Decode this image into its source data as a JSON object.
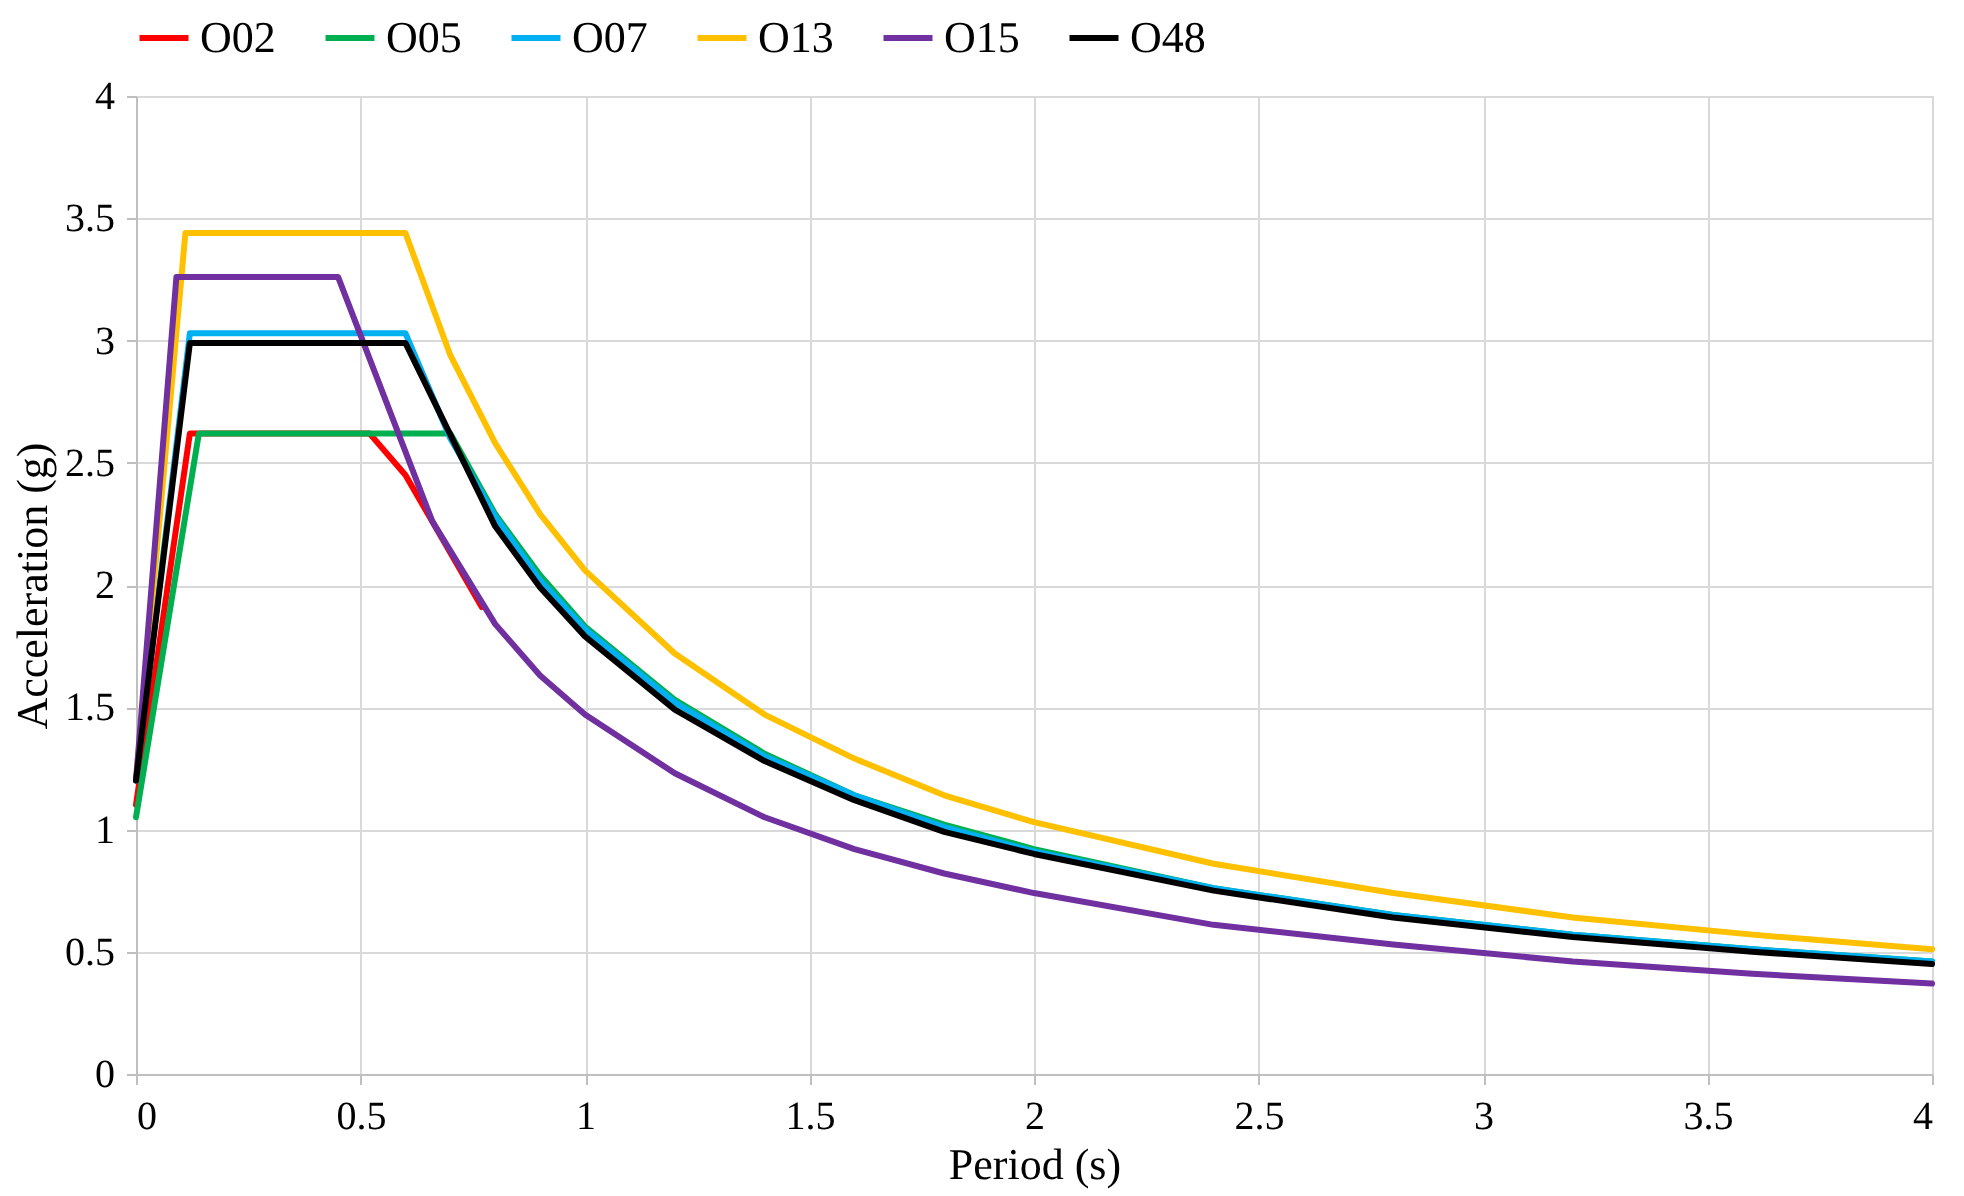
{
  "chart_data": {
    "type": "line",
    "xlabel": "Period (s)",
    "ylabel": "Acceleration (g)",
    "xlim": [
      0,
      4
    ],
    "xticks": [
      0,
      0.5,
      1,
      1.5,
      2,
      2.5,
      3,
      3.5,
      4
    ],
    "ylim": [
      0,
      4
    ],
    "yticks": [
      0,
      0.5,
      1,
      1.5,
      2,
      2.5,
      3,
      3.5,
      4
    ],
    "grid": true,
    "legend": "top",
    "marker": "none",
    "line_style": "solid",
    "series": [
      {
        "name": "O02",
        "color": "#ff0000",
        "x": [
          0,
          0.12,
          0.52,
          0.6,
          0.77
        ],
        "values": [
          1.1,
          2.62,
          2.62,
          2.45,
          1.91
        ]
      },
      {
        "name": "O05",
        "color": "#00b050",
        "x": [
          0,
          0.14,
          0.7,
          0.8,
          0.9,
          1.0,
          1.2,
          1.4,
          1.6,
          1.8,
          2.0,
          2.4,
          2.8,
          3.2,
          3.6,
          4.0
        ],
        "values": [
          1.05,
          2.62,
          2.62,
          2.29,
          2.04,
          1.83,
          1.53,
          1.31,
          1.14,
          1.02,
          0.92,
          0.76,
          0.65,
          0.57,
          0.51,
          0.46
        ]
      },
      {
        "name": "O07",
        "color": "#00b0f0",
        "x": [
          0,
          0.12,
          0.6,
          0.7,
          0.8,
          0.9,
          1.0,
          1.2,
          1.4,
          1.6,
          1.8,
          2.0,
          2.4,
          2.8,
          3.2,
          3.6,
          4.0
        ],
        "values": [
          1.2,
          3.03,
          3.03,
          2.6,
          2.28,
          2.02,
          1.82,
          1.52,
          1.3,
          1.14,
          1.01,
          0.91,
          0.76,
          0.65,
          0.57,
          0.51,
          0.46
        ]
      },
      {
        "name": "O13",
        "color": "#ffc000",
        "x": [
          0,
          0.11,
          0.6,
          0.7,
          0.8,
          0.9,
          1.0,
          1.2,
          1.4,
          1.6,
          1.8,
          2.0,
          2.4,
          2.8,
          3.2,
          3.6,
          4.0
        ],
        "values": [
          1.2,
          3.44,
          3.44,
          2.94,
          2.58,
          2.29,
          2.06,
          1.72,
          1.47,
          1.29,
          1.14,
          1.03,
          0.86,
          0.74,
          0.64,
          0.57,
          0.51
        ]
      },
      {
        "name": "O15",
        "color": "#7030a0",
        "x": [
          0,
          0.09,
          0.45,
          0.66,
          0.8,
          0.9,
          1.0,
          1.2,
          1.4,
          1.6,
          1.8,
          2.0,
          2.4,
          2.8,
          3.2,
          3.6,
          4.0
        ],
        "values": [
          1.2,
          3.26,
          3.26,
          2.26,
          1.84,
          1.63,
          1.47,
          1.23,
          1.05,
          0.92,
          0.82,
          0.74,
          0.61,
          0.53,
          0.46,
          0.41,
          0.37
        ]
      },
      {
        "name": "O48",
        "color": "#000000",
        "x": [
          0,
          0.12,
          0.6,
          0.8,
          0.9,
          1.0,
          1.2,
          1.4,
          1.6,
          1.8,
          2.0,
          2.4,
          2.8,
          3.2,
          3.6,
          4.0
        ],
        "values": [
          1.2,
          2.99,
          2.99,
          2.24,
          1.99,
          1.79,
          1.49,
          1.28,
          1.12,
          0.99,
          0.9,
          0.75,
          0.64,
          0.56,
          0.5,
          0.45
        ]
      }
    ]
  }
}
